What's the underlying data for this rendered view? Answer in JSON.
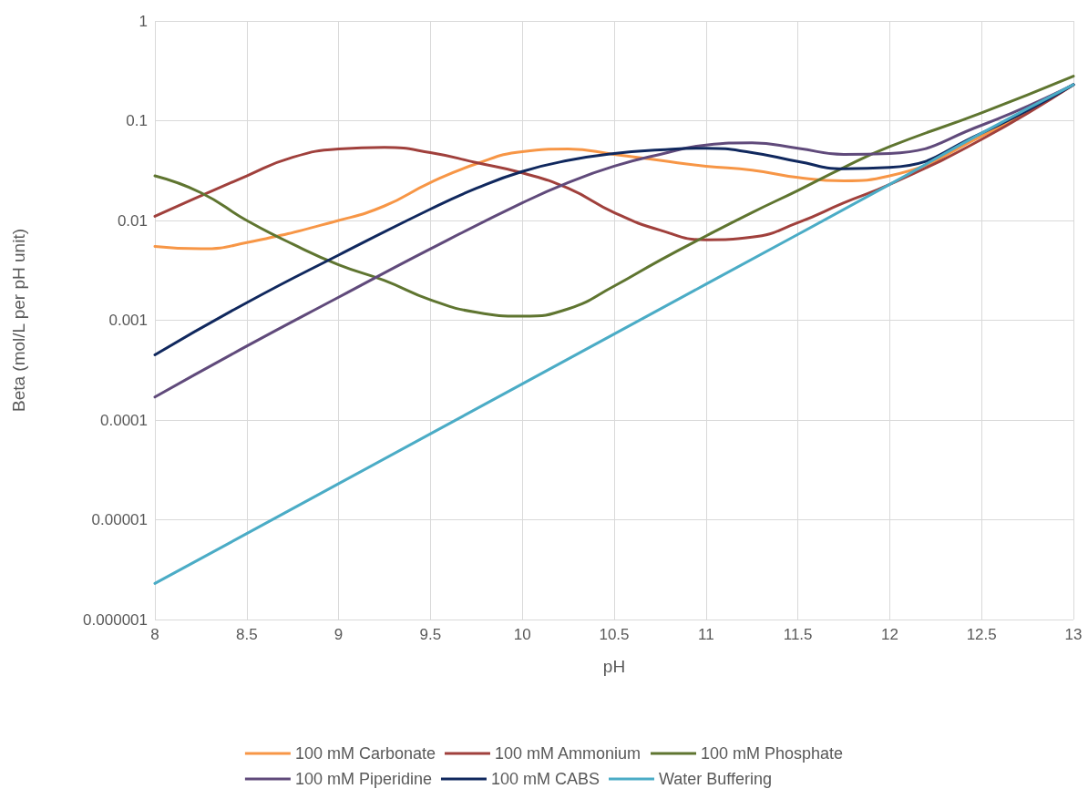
{
  "chart_data": {
    "type": "line",
    "xlabel": "pH",
    "ylabel": "Beta (mol/L per pH unit)",
    "log": "y",
    "grid": true,
    "legend": "bottom",
    "xlim": [
      8,
      13
    ],
    "xticks": [
      8,
      8.5,
      9,
      9.5,
      10,
      10.5,
      11,
      11.5,
      12,
      12.5,
      13
    ],
    "ylim": [
      1e-06,
      1
    ],
    "yticks": [
      {
        "value": 1e-06,
        "label": "0.000001"
      },
      {
        "value": 1e-05,
        "label": "0.00001"
      },
      {
        "value": 0.0001,
        "label": "0.0001"
      },
      {
        "value": 0.001,
        "label": "0.001"
      },
      {
        "value": 0.01,
        "label": "0.01"
      },
      {
        "value": 0.1,
        "label": "0.1"
      },
      {
        "value": 1,
        "label": "1"
      }
    ],
    "series": [
      {
        "name": "100 mM Carbonate",
        "color": "#f79646",
        "x": [
          8,
          8.25,
          8.5,
          9,
          9.25,
          9.5,
          9.75,
          10,
          10.25,
          10.5,
          10.75,
          11,
          11.25,
          11.5,
          11.75,
          12,
          12.5,
          13
        ],
        "values": [
          0.0055,
          0.0052,
          0.006,
          0.01,
          0.014,
          0.024,
          0.037,
          0.049,
          0.052,
          0.046,
          0.04,
          0.035,
          0.032,
          0.027,
          0.025,
          0.028,
          0.07,
          0.23
        ]
      },
      {
        "name": "100 mM Ammonium",
        "color": "#a0403c",
        "x": [
          8,
          8.5,
          8.75,
          9,
          9.25,
          9.5,
          9.75,
          10,
          10.25,
          10.5,
          10.75,
          11,
          11.25,
          11.5,
          11.75,
          12,
          12.5,
          13
        ],
        "values": [
          0.011,
          0.028,
          0.043,
          0.052,
          0.054,
          0.048,
          0.038,
          0.03,
          0.021,
          0.012,
          0.008,
          0.0064,
          0.0068,
          0.0095,
          0.015,
          0.023,
          0.065,
          0.23
        ]
      },
      {
        "name": "100 mM Phosphate",
        "color": "#5f7530",
        "x": [
          8,
          8.25,
          8.5,
          8.75,
          9,
          9.25,
          9.5,
          9.75,
          10,
          10.25,
          10.5,
          10.75,
          11,
          11.25,
          11.5,
          11.75,
          12,
          12.5,
          13
        ],
        "values": [
          0.028,
          0.019,
          0.01,
          0.0058,
          0.0036,
          0.0025,
          0.0016,
          0.0012,
          0.0011,
          0.0013,
          0.0022,
          0.004,
          0.007,
          0.012,
          0.02,
          0.034,
          0.055,
          0.12,
          0.28
        ]
      },
      {
        "name": "100 mM Piperidine",
        "color": "#604a7b",
        "x": [
          8,
          8.5,
          9,
          9.5,
          10,
          10.25,
          10.5,
          10.75,
          11,
          11.25,
          11.5,
          11.75,
          12,
          12.5,
          13
        ],
        "values": [
          0.00017,
          0.00055,
          0.0017,
          0.0052,
          0.015,
          0.024,
          0.035,
          0.046,
          0.057,
          0.06,
          0.053,
          0.046,
          0.047,
          0.09,
          0.23
        ]
      },
      {
        "name": "100 mM CABS",
        "color": "#10285e",
        "x": [
          8,
          8.5,
          9,
          9.5,
          9.75,
          10,
          10.25,
          10.5,
          10.75,
          11,
          11.25,
          11.5,
          11.75,
          12,
          12.5,
          13
        ],
        "values": [
          0.00045,
          0.0015,
          0.0045,
          0.013,
          0.021,
          0.031,
          0.04,
          0.047,
          0.051,
          0.053,
          0.048,
          0.039,
          0.033,
          0.034,
          0.075,
          0.23
        ]
      },
      {
        "name": "Water Buffering",
        "color": "#4bacc6",
        "x": [
          8,
          9,
          10,
          11,
          12,
          12.5,
          13
        ],
        "values": [
          2.3e-06,
          2.3e-05,
          0.00023,
          0.0023,
          0.023,
          0.075,
          0.23
        ]
      }
    ]
  }
}
